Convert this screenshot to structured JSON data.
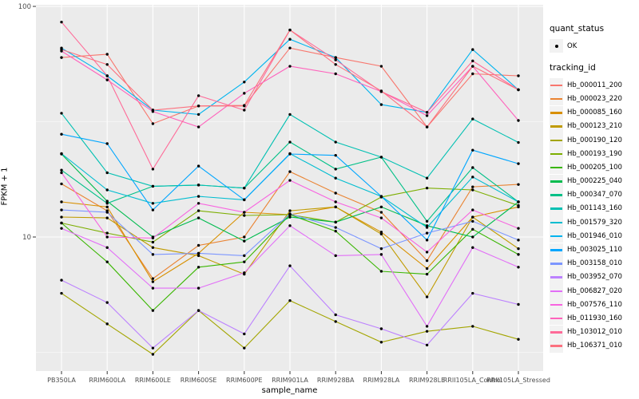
{
  "legend": {
    "quant_title": "quant_status",
    "quant_items": [
      {
        "label": "OK",
        "marker": "black-point"
      }
    ],
    "tracking_title": "tracking_id"
  },
  "colors": {
    "panel_bg": "#EBEBEB",
    "gridline": "#FFFFFF",
    "tick_text": "#4D4D4D",
    "axis_text": "#000000",
    "legend_key_bg": "#F2F2F2",
    "point": "#000000"
  },
  "chart_data": {
    "type": "line",
    "title": "",
    "x_label": "sample_name",
    "y_label": "FPKM + 1",
    "y_scale": "log10",
    "y_ticks": [
      100,
      10
    ],
    "y_minor_ticks": [
      31.62,
      3.162
    ],
    "ylim": [
      2.6,
      102
    ],
    "grid": true,
    "legend_position": "right",
    "point_shape": "filled-circle",
    "point_color": "#000000",
    "quant_status_all": "OK",
    "categories": [
      "PB350LA",
      "RRIM600LA",
      "RRIM600LE",
      "RRIM600SE",
      "RRIM600PE",
      "RRIM901LA",
      "RRIM928BA",
      "RRIM928LA",
      "RRIM928LE",
      "RRII105LA_Control",
      "RRII105LA_Stressed"
    ],
    "series": [
      {
        "name": "Hb_000011_200",
        "color": "#F8766D",
        "values": [
          60,
          62,
          31,
          37,
          37,
          66,
          60,
          55,
          30,
          51,
          50
        ]
      },
      {
        "name": "Hb_000023_220",
        "color": "#EA8331",
        "values": [
          17,
          13,
          6.6,
          9.2,
          10,
          19.2,
          15.5,
          12.8,
          7.9,
          16.5,
          16.9
        ]
      },
      {
        "name": "Hb_000085_160",
        "color": "#D89000",
        "values": [
          14.2,
          13.5,
          6.4,
          8.5,
          12.8,
          12.5,
          13.5,
          10.5,
          7.3,
          12.2,
          13.5
        ]
      },
      {
        "name": "Hb_000123_210",
        "color": "#C09B00",
        "values": [
          12.2,
          12.1,
          9,
          8.3,
          6.9,
          13,
          13.5,
          10.3,
          5.5,
          12.2,
          8.9
        ]
      },
      {
        "name": "Hb_000190_120",
        "color": "#A3A500",
        "values": [
          5.7,
          4.2,
          3.1,
          4.8,
          3.3,
          5.3,
          4.3,
          3.5,
          3.9,
          4.1,
          3.6
        ]
      },
      {
        "name": "Hb_000193_190",
        "color": "#7CAE00",
        "values": [
          11.5,
          10.4,
          9.5,
          13,
          12.4,
          12.5,
          11.6,
          14.9,
          16.3,
          16,
          13.7
        ]
      },
      {
        "name": "Hb_000205_100",
        "color": "#39B600",
        "values": [
          11.5,
          7.8,
          4.8,
          7.4,
          7.8,
          12.5,
          10.6,
          7.1,
          6.9,
          10.8,
          8.4
        ]
      },
      {
        "name": "Hb_000225_040",
        "color": "#00BB4E",
        "values": [
          22.9,
          14.3,
          10,
          12.1,
          9.6,
          12.2,
          11.6,
          13.5,
          11.2,
          10,
          14.2
        ]
      },
      {
        "name": "Hb_000347_070",
        "color": "#00C087",
        "values": [
          19.5,
          14,
          16.6,
          16.8,
          16.3,
          25.8,
          19.7,
          22.2,
          11.7,
          20,
          14.2
        ]
      },
      {
        "name": "Hb_001143_160",
        "color": "#00C0B2",
        "values": [
          34.4,
          19,
          16.6,
          16.8,
          16.3,
          34,
          25.8,
          22.2,
          18,
          32.5,
          25.7
        ]
      },
      {
        "name": "Hb_001579_320",
        "color": "#00BDD0",
        "values": [
          23,
          16,
          14,
          15,
          14.5,
          23,
          18,
          15,
          11,
          18.2,
          14.2
        ]
      },
      {
        "name": "Hb_001946_010",
        "color": "#00B4EF",
        "values": [
          66,
          50,
          35.5,
          34,
          47,
          72,
          60,
          37.5,
          34.7,
          65,
          43.5
        ]
      },
      {
        "name": "Hb_003025_110",
        "color": "#00A6FF",
        "values": [
          27.9,
          25.4,
          13.1,
          20.3,
          14.5,
          22.9,
          22.6,
          15,
          9.7,
          23.8,
          20.8
        ]
      },
      {
        "name": "Hb_003158_010",
        "color": "#7C96FF",
        "values": [
          13.1,
          12.8,
          8.4,
          8.5,
          8.3,
          12.6,
          11,
          8.9,
          10.4,
          11.7,
          9.7
        ]
      },
      {
        "name": "Hb_003952_070",
        "color": "#BC81FF",
        "values": [
          6.5,
          5.2,
          3.3,
          4.8,
          3.8,
          7.5,
          4.6,
          4,
          3.4,
          5.7,
          5.1
        ]
      },
      {
        "name": "Hb_006827_020",
        "color": "#E26EF7",
        "values": [
          10.9,
          9,
          6,
          6,
          7,
          11.2,
          8.3,
          8.4,
          4.1,
          9,
          7.4
        ]
      },
      {
        "name": "Hb_007576_110",
        "color": "#F863E0",
        "values": [
          19,
          10,
          9.9,
          14,
          12.8,
          17.6,
          14.2,
          12.1,
          8.6,
          13.1,
          10.9
        ]
      },
      {
        "name": "Hb_011930_160",
        "color": "#FF62BC",
        "values": [
          64,
          48,
          35,
          30,
          42,
          55,
          51,
          42.7,
          33.6,
          55,
          32
        ]
      },
      {
        "name": "Hb_103012_010",
        "color": "#FF6A98",
        "values": [
          85.5,
          50,
          19.7,
          41,
          35.5,
          79,
          58.6,
          42.7,
          34.7,
          58,
          43.5
        ]
      },
      {
        "name": "Hb_106371_010",
        "color": "#FC717F",
        "values": [
          65,
          56,
          35.5,
          37,
          37.2,
          79,
          56,
          43,
          30,
          55,
          43.5
        ]
      }
    ]
  }
}
